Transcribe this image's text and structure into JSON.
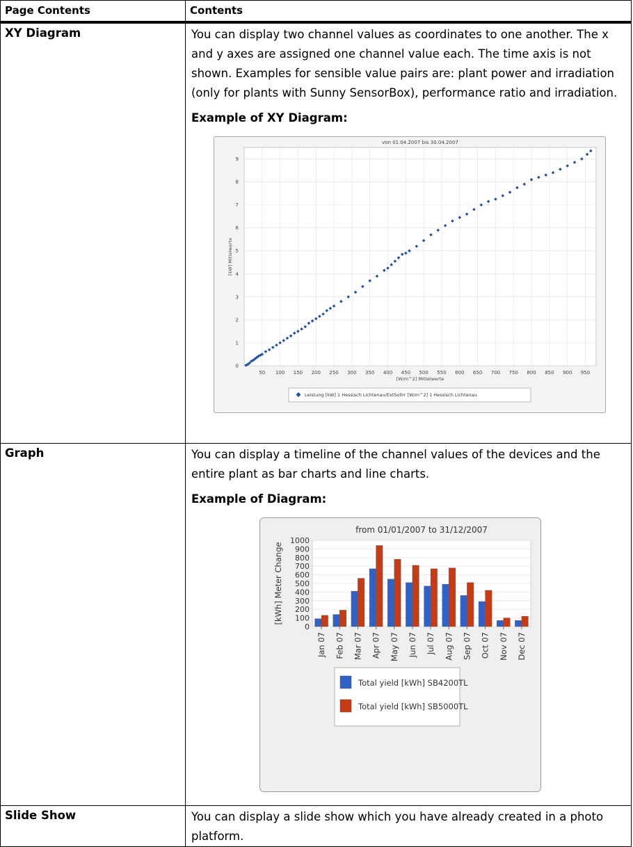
{
  "table": {
    "header": {
      "col1": "Page Contents",
      "col2": "Contents"
    },
    "rows": [
      {
        "name": "XY Diagram",
        "text": "You can display two channel values as coordinates to one another. The x and y axes are assigned one channel value each. The time axis is not shown. Examples for sensible value pairs are: plant power and irradiation (only for plants with Sunny SensorBox), performance ratio and irradiation.",
        "example_title": "Example of XY Diagram:"
      },
      {
        "name": "Graph",
        "text": "You can display a timeline of the channel values of the devices and the entire plant as bar charts and line charts.",
        "example_title": "Example of Diagram:"
      },
      {
        "name": "Slide Show",
        "text": "You can display a slide show which you have already created in a photo platform."
      }
    ]
  },
  "chart_data": [
    {
      "type": "scatter",
      "title": "von 01.04.2007 bis 30.04.2007",
      "xlabel": "[W/m^2] Mittelwerte",
      "ylabel": "[kW] Mittelwerte",
      "xlim": [
        0,
        980
      ],
      "ylim": [
        0,
        9.5
      ],
      "xticks": [
        50,
        100,
        150,
        200,
        250,
        300,
        350,
        400,
        450,
        500,
        550,
        600,
        650,
        700,
        750,
        800,
        850,
        900,
        950
      ],
      "yticks": [
        0,
        1,
        2,
        3,
        4,
        5,
        6,
        7,
        8,
        9
      ],
      "grid": true,
      "legend_position": "bottom",
      "series": [
        {
          "name": "Leistung [kW] 1 Hessisch Lichtenau/ExtSollrr [W/m^2] 1 Hessisch Lichtenau",
          "color": "#1f4fa8",
          "points": [
            [
              5,
              0.02
            ],
            [
              10,
              0.06
            ],
            [
              15,
              0.12
            ],
            [
              20,
              0.2
            ],
            [
              25,
              0.24
            ],
            [
              30,
              0.3
            ],
            [
              35,
              0.36
            ],
            [
              40,
              0.42
            ],
            [
              45,
              0.46
            ],
            [
              50,
              0.5
            ],
            [
              60,
              0.62
            ],
            [
              70,
              0.7
            ],
            [
              80,
              0.8
            ],
            [
              90,
              0.9
            ],
            [
              100,
              1.0
            ],
            [
              110,
              1.1
            ],
            [
              120,
              1.2
            ],
            [
              130,
              1.3
            ],
            [
              140,
              1.42
            ],
            [
              150,
              1.5
            ],
            [
              160,
              1.6
            ],
            [
              170,
              1.7
            ],
            [
              180,
              1.85
            ],
            [
              190,
              1.95
            ],
            [
              200,
              2.05
            ],
            [
              210,
              2.15
            ],
            [
              220,
              2.25
            ],
            [
              230,
              2.4
            ],
            [
              240,
              2.5
            ],
            [
              250,
              2.6
            ],
            [
              270,
              2.8
            ],
            [
              290,
              3.0
            ],
            [
              310,
              3.2
            ],
            [
              330,
              3.45
            ],
            [
              350,
              3.7
            ],
            [
              370,
              3.9
            ],
            [
              390,
              4.15
            ],
            [
              400,
              4.25
            ],
            [
              410,
              4.4
            ],
            [
              420,
              4.55
            ],
            [
              430,
              4.7
            ],
            [
              440,
              4.85
            ],
            [
              450,
              4.9
            ],
            [
              460,
              5.0
            ],
            [
              480,
              5.2
            ],
            [
              500,
              5.45
            ],
            [
              520,
              5.7
            ],
            [
              540,
              5.9
            ],
            [
              560,
              6.1
            ],
            [
              580,
              6.3
            ],
            [
              600,
              6.45
            ],
            [
              620,
              6.6
            ],
            [
              640,
              6.8
            ],
            [
              660,
              7.0
            ],
            [
              680,
              7.15
            ],
            [
              700,
              7.25
            ],
            [
              720,
              7.4
            ],
            [
              740,
              7.55
            ],
            [
              760,
              7.75
            ],
            [
              780,
              7.9
            ],
            [
              800,
              8.1
            ],
            [
              820,
              8.2
            ],
            [
              840,
              8.3
            ],
            [
              860,
              8.4
            ],
            [
              880,
              8.55
            ],
            [
              900,
              8.7
            ],
            [
              920,
              8.85
            ],
            [
              940,
              9.0
            ],
            [
              955,
              9.2
            ],
            [
              965,
              9.35
            ]
          ]
        }
      ]
    },
    {
      "type": "bar",
      "title": "from 01/01/2007 to 31/12/2007",
      "ylabel": "[kWh] Meter Change",
      "xlabel": "",
      "ylim": [
        0,
        1000
      ],
      "yticks": [
        0,
        100,
        200,
        300,
        400,
        500,
        600,
        700,
        800,
        900,
        1000
      ],
      "grid": true,
      "legend_position": "bottom",
      "categories": [
        "Jan 07",
        "Feb 07",
        "Mar 07",
        "Apr 07",
        "May 07",
        "Jun 07",
        "Jul 07",
        "Aug 07",
        "Sep 07",
        "Oct 07",
        "Nov 07",
        "Dec 07"
      ],
      "series": [
        {
          "name": "Total yield [kWh] SB4200TL",
          "color": "#2f62c8",
          "values": [
            90,
            140,
            410,
            670,
            550,
            510,
            470,
            490,
            360,
            290,
            70,
            70
          ]
        },
        {
          "name": "Total yield [kWh] SB5000TL",
          "color": "#c83a12",
          "values": [
            130,
            190,
            560,
            940,
            780,
            710,
            670,
            680,
            510,
            420,
            100,
            120
          ]
        }
      ]
    }
  ]
}
